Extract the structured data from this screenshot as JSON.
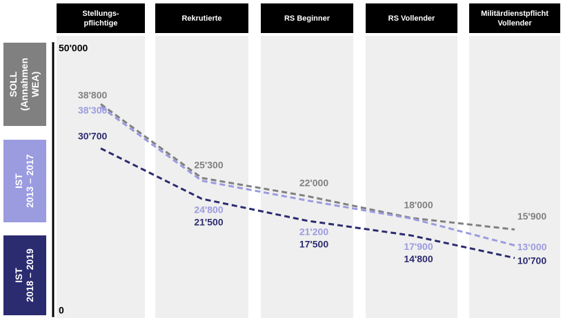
{
  "chart_data": {
    "type": "line",
    "categories": [
      "Stellungs-\npflichtige",
      "Rekrutierte",
      "RS Beginner",
      "RS Vollender",
      "Militärdienstpflicht\nVollender"
    ],
    "series": [
      {
        "name": "SOLL\n(Annahmen\nWEA)",
        "color": "#808080",
        "values": [
          38800,
          25300,
          22000,
          18000,
          15900
        ],
        "value_labels": [
          "38'800",
          "25'300",
          "22'000",
          "18'000",
          "15'900"
        ]
      },
      {
        "name": "IST\n2013 – 2017",
        "color": "#9b9be0",
        "values": [
          38300,
          24800,
          21200,
          17900,
          13000
        ],
        "value_labels": [
          "38'300",
          "24'800",
          "21'200",
          "17'900",
          "13‘000"
        ]
      },
      {
        "name": "IST\n2018 – 2019",
        "color": "#2b2b70",
        "values": [
          30700,
          21500,
          17500,
          14800,
          10700
        ],
        "value_labels": [
          "30'700",
          "21'500",
          "17'500",
          "14'800",
          "10'700"
        ]
      }
    ],
    "ylim": [
      0,
      50000
    ],
    "yticks": [
      0,
      {
        "value": 50000,
        "label": "50'000"
      }
    ]
  }
}
